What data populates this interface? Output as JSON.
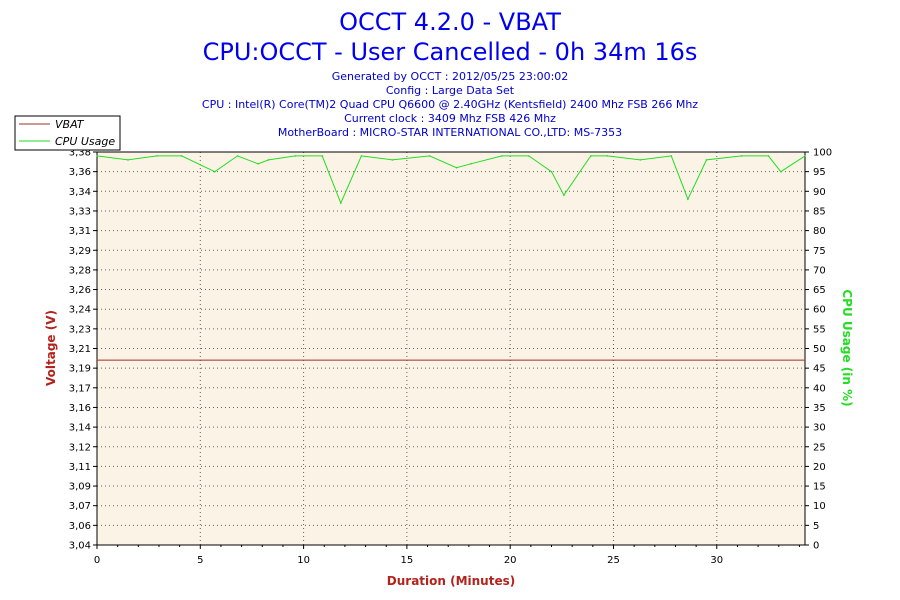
{
  "header": {
    "title": "OCCT 4.2.0 - VBAT",
    "subtitle": "CPU:OCCT - User Cancelled - 0h 34m 16s",
    "info_lines": [
      "Generated by OCCT : 2012/05/25 23:00:02",
      "Config : Large Data Set",
      "CPU : Intel(R) Core(TM)2 Quad CPU Q6600 @ 2.40GHz (Kentsfield) 2400 Mhz FSB 266 Mhz",
      "Current clock : 3409 Mhz FSB 426 Mhz",
      "MotherBoard : MICRO-STAR INTERNATIONAL CO.,LTD: MS-7353"
    ]
  },
  "colors": {
    "plot_background": "#fbf4e6",
    "vbat": "#9b2f2a",
    "cpu_usage": "#22dd22",
    "grid": "#000000",
    "axis_title_left": "#b3231c",
    "axis_title_right": "#22dd22"
  },
  "chart_data": {
    "type": "line",
    "xlabel": "Duration (Minutes)",
    "ylabel_left": "Voltage (V)",
    "ylabel_right": "CPU Usage (in %)",
    "xlim": [
      0,
      34.27
    ],
    "ylim_left": [
      3.04,
      3.38
    ],
    "ylim_right": [
      0,
      100
    ],
    "x_ticks": [
      0,
      5,
      10,
      15,
      20,
      25,
      30
    ],
    "y_left_ticks": [
      "3,04",
      "3,06",
      "3,07",
      "3,09",
      "3,11",
      "3,12",
      "3,14",
      "3,16",
      "3,17",
      "3,19",
      "3,21",
      "3,23",
      "3,24",
      "3,26",
      "3,28",
      "3,29",
      "3,31",
      "3,33",
      "3,34",
      "3,36",
      "3,38"
    ],
    "y_right_ticks": [
      0,
      5,
      10,
      15,
      20,
      25,
      30,
      35,
      40,
      45,
      50,
      55,
      60,
      65,
      70,
      75,
      80,
      85,
      90,
      95,
      100
    ],
    "grid": true,
    "legend": {
      "position": "top-left",
      "entries": [
        "VBAT",
        "CPU Usage"
      ]
    },
    "series": [
      {
        "name": "VBAT",
        "axis": "left",
        "x": [
          0,
          34.27
        ],
        "values": [
          3.2,
          3.2
        ]
      },
      {
        "name": "CPU Usage",
        "axis": "right",
        "x": [
          0,
          1.5,
          2.9,
          4.1,
          5.7,
          6.8,
          7.8,
          8.3,
          9.6,
          10.9,
          11.8,
          12.8,
          14.3,
          16.1,
          17.4,
          18.1,
          19.6,
          20.9,
          22.0,
          22.6,
          23.9,
          24.7,
          26.3,
          27.8,
          28.6,
          29.5,
          31.2,
          32.5,
          33.1,
          34.27
        ],
        "values": [
          99,
          98,
          99,
          99,
          95,
          99,
          97,
          98,
          99,
          99,
          87,
          99,
          98,
          99,
          96,
          97,
          99,
          99,
          95,
          89,
          99,
          99,
          98,
          99,
          88,
          98,
          99,
          99,
          95,
          99
        ]
      }
    ]
  }
}
